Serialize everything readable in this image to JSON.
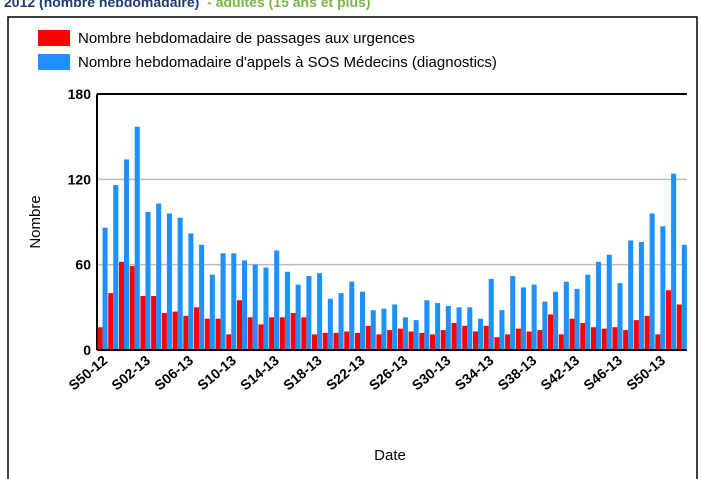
{
  "chart_data": {
    "type": "bar",
    "title": "2012 (nombre hebdomadaire)",
    "subtitle": "- adultes (15 ans et plus)",
    "x_label": "Date",
    "y_label": "Nombre",
    "categories": [
      "S50-12",
      null,
      null,
      null,
      "S02-13",
      null,
      null,
      null,
      "S06-13",
      null,
      null,
      null,
      "S10-13",
      null,
      null,
      null,
      "S14-13",
      null,
      null,
      null,
      "S18-13",
      null,
      null,
      null,
      "S22-13",
      null,
      null,
      null,
      "S26-13",
      null,
      null,
      null,
      "S30-13",
      null,
      null,
      null,
      "S34-13",
      null,
      null,
      null,
      "S38-13",
      null,
      null,
      null,
      "S42-13",
      null,
      null,
      null,
      "S46-13",
      null,
      null,
      null,
      "S50-13",
      null,
      null
    ],
    "series": [
      {
        "name": "Nombre hebdomadaire de passages aux urgences",
        "color": "#ff0000",
        "values": [
          16,
          40,
          62,
          59,
          38,
          38,
          26,
          27,
          24,
          30,
          22,
          22,
          11,
          35,
          23,
          18,
          23,
          23,
          26,
          23,
          11,
          12,
          12,
          13,
          12,
          17,
          11,
          14,
          15,
          13,
          12,
          11,
          14,
          19,
          17,
          13,
          17,
          9,
          11,
          15,
          13,
          14,
          25,
          11,
          22,
          19,
          16,
          15,
          16,
          14,
          21,
          24,
          11,
          42,
          32
        ]
      },
      {
        "name": "Nombre hebdomadaire d'appels à SOS Médecins (diagnostics)",
        "color": "#1e90ff",
        "values": [
          86,
          116,
          134,
          157,
          97,
          103,
          96,
          93,
          82,
          74,
          53,
          68,
          68,
          63,
          60,
          58,
          70,
          55,
          46,
          52,
          54,
          36,
          40,
          48,
          41,
          28,
          29,
          32,
          23,
          21,
          35,
          33,
          31,
          30,
          30,
          22,
          50,
          28,
          52,
          44,
          46,
          34,
          41,
          48,
          43,
          53,
          62,
          67,
          47,
          77,
          76,
          96,
          87,
          124,
          74
        ]
      }
    ],
    "ylim": [
      0,
      180
    ],
    "yticks": [
      0,
      60,
      120,
      180
    ],
    "grid": true
  }
}
